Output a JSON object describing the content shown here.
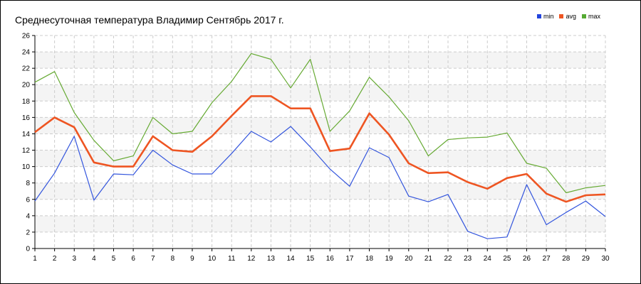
{
  "title": "Среднесуточная температура Владимир  Сентябрь 2017 г.",
  "legend": [
    {
      "label": "min",
      "color": "#2244dd"
    },
    {
      "label": "avg",
      "color": "#ee5522"
    },
    {
      "label": "max",
      "color": "#55aa33"
    }
  ],
  "chart_data": {
    "type": "line",
    "title": "Среднесуточная температура Владимир  Сентябрь 2017 г.",
    "xlabel": "",
    "ylabel": "",
    "x": [
      1,
      2,
      3,
      4,
      5,
      6,
      7,
      8,
      9,
      10,
      11,
      12,
      13,
      14,
      15,
      16,
      17,
      18,
      19,
      20,
      21,
      22,
      23,
      24,
      25,
      26,
      27,
      28,
      29,
      30
    ],
    "ylim": [
      0,
      26
    ],
    "yticks": [
      0,
      2,
      4,
      6,
      8,
      10,
      12,
      14,
      16,
      18,
      20,
      22,
      24,
      26
    ],
    "grid": true,
    "legend_position": "top-right",
    "series": [
      {
        "name": "min",
        "color": "#3355dd",
        "values": [
          5.8,
          9.2,
          13.7,
          5.9,
          9.1,
          9.0,
          12.0,
          10.2,
          9.1,
          9.1,
          11.6,
          14.3,
          13.0,
          14.9,
          12.4,
          9.7,
          7.6,
          12.3,
          11.1,
          6.4,
          5.7,
          6.6,
          2.1,
          1.2,
          1.4,
          7.8,
          2.9,
          4.4,
          5.8,
          3.9
        ]
      },
      {
        "name": "avg",
        "color": "#ee5522",
        "values": [
          14.2,
          16.0,
          14.8,
          10.5,
          10.0,
          10.0,
          13.7,
          12.0,
          11.8,
          13.7,
          16.2,
          18.6,
          18.6,
          17.1,
          17.1,
          11.9,
          12.2,
          16.5,
          13.9,
          10.4,
          9.2,
          9.3,
          8.1,
          7.3,
          8.6,
          9.1,
          6.7,
          5.7,
          6.5,
          6.6
        ]
      },
      {
        "name": "max",
        "color": "#66aa33",
        "values": [
          20.3,
          21.6,
          16.6,
          13.2,
          10.7,
          11.3,
          16.0,
          14.0,
          14.3,
          17.8,
          20.4,
          23.8,
          23.1,
          19.6,
          23.1,
          14.3,
          16.8,
          20.9,
          18.5,
          15.6,
          11.3,
          13.3,
          13.5,
          13.6,
          14.1,
          10.4,
          9.8,
          6.8,
          7.4,
          7.7
        ]
      }
    ]
  }
}
